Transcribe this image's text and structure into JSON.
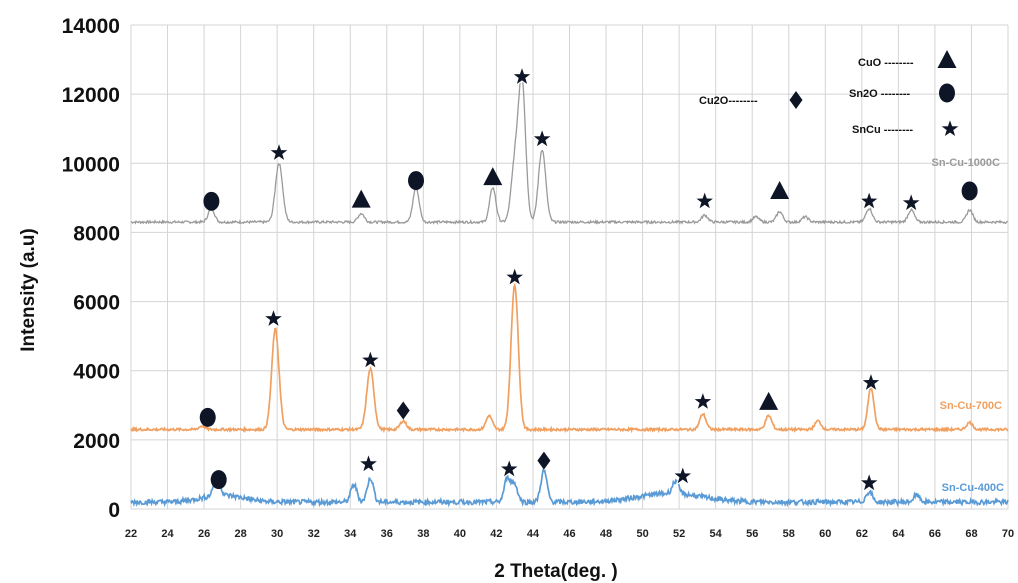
{
  "chart_data": {
    "type": "line",
    "title": "",
    "xlabel": "2 Theta(deg. )",
    "ylabel": "Intensity (a.u)",
    "xlim": [
      22,
      70
    ],
    "ylim": [
      0,
      14000
    ],
    "grid": true,
    "x_ticks": [
      "22",
      "24",
      "26",
      "28",
      "30",
      "32",
      "34",
      "36",
      "38",
      "40",
      "42",
      "44",
      "46",
      "48",
      "50",
      "52",
      "54",
      "56",
      "58",
      "60",
      "62",
      "64",
      "66",
      "68",
      "70"
    ],
    "y_ticks": [
      "0",
      "2000",
      "4000",
      "6000",
      "8000",
      "10000",
      "12000",
      "14000"
    ],
    "colors": {
      "Sn-Cu-1000C": "#9a9a9a",
      "Sn-Cu-700C": "#f0a060",
      "Sn-Cu-400C": "#5b9bd5",
      "marker": "#0d1526"
    },
    "series": [
      {
        "name": "Sn-Cu-1000C",
        "baseline": 8300,
        "peaks": [
          [
            26.4,
            400
          ],
          [
            30.1,
            1700
          ],
          [
            34.6,
            250
          ],
          [
            37.6,
            1000
          ],
          [
            41.8,
            1000
          ],
          [
            43.0,
            1600
          ],
          [
            43.4,
            4050
          ],
          [
            44.5,
            2100
          ],
          [
            53.4,
            200
          ],
          [
            56.2,
            150
          ],
          [
            57.5,
            300
          ],
          [
            58.9,
            150
          ],
          [
            62.4,
            400
          ],
          [
            64.7,
            350
          ],
          [
            67.9,
            350
          ]
        ]
      },
      {
        "name": "Sn-Cu-700C",
        "baseline": 2300,
        "peaks": [
          [
            25.9,
            100
          ],
          [
            29.9,
            2900
          ],
          [
            35.1,
            1750
          ],
          [
            36.9,
            250
          ],
          [
            41.6,
            400
          ],
          [
            43.0,
            4200
          ],
          [
            53.3,
            450
          ],
          [
            56.9,
            400
          ],
          [
            59.6,
            250
          ],
          [
            62.5,
            1200
          ],
          [
            67.9,
            200
          ]
        ]
      },
      {
        "name": "Sn-Cu-400C",
        "baseline": 200,
        "peaks": [
          [
            26.7,
            600
          ],
          [
            34.2,
            500
          ],
          [
            35.1,
            700
          ],
          [
            42.6,
            700
          ],
          [
            43.0,
            500
          ],
          [
            44.6,
            900
          ],
          [
            51.8,
            350
          ],
          [
            62.4,
            300
          ],
          [
            65.0,
            200
          ]
        ]
      }
    ],
    "phase_legend": [
      {
        "label": "CuO --------",
        "marker": "triangle"
      },
      {
        "label": "Sn2O --------",
        "marker": "circle"
      },
      {
        "label": "SnCu --------",
        "marker": "star"
      },
      {
        "label": "Cu2O--------",
        "marker": "diamond"
      }
    ],
    "phase_markers": [
      {
        "marker": "circle",
        "x": 26.4,
        "y": 8900
      },
      {
        "marker": "star",
        "x": 30.1,
        "y": 10300
      },
      {
        "marker": "triangle",
        "x": 34.6,
        "y": 8950
      },
      {
        "marker": "circle",
        "x": 37.6,
        "y": 9500
      },
      {
        "marker": "triangle",
        "x": 41.8,
        "y": 9600
      },
      {
        "marker": "star",
        "x": 43.4,
        "y": 12500
      },
      {
        "marker": "star",
        "x": 44.5,
        "y": 10700
      },
      {
        "marker": "star",
        "x": 53.4,
        "y": 8900
      },
      {
        "marker": "triangle",
        "x": 57.5,
        "y": 9200
      },
      {
        "marker": "star",
        "x": 62.4,
        "y": 8900
      },
      {
        "marker": "star",
        "x": 64.7,
        "y": 8850
      },
      {
        "marker": "circle",
        "x": 67.9,
        "y": 9200
      },
      {
        "marker": "circle",
        "x": 26.2,
        "y": 2650
      },
      {
        "marker": "star",
        "x": 29.8,
        "y": 5500
      },
      {
        "marker": "star",
        "x": 35.1,
        "y": 4300
      },
      {
        "marker": "diamond",
        "x": 36.9,
        "y": 2850
      },
      {
        "marker": "star",
        "x": 43.0,
        "y": 6700
      },
      {
        "marker": "star",
        "x": 53.3,
        "y": 3100
      },
      {
        "marker": "triangle",
        "x": 56.9,
        "y": 3100
      },
      {
        "marker": "star",
        "x": 62.5,
        "y": 3650
      },
      {
        "marker": "circle",
        "x": 26.8,
        "y": 850
      },
      {
        "marker": "star",
        "x": 35.0,
        "y": 1300
      },
      {
        "marker": "star",
        "x": 42.7,
        "y": 1150
      },
      {
        "marker": "diamond",
        "x": 44.6,
        "y": 1400
      },
      {
        "marker": "star",
        "x": 52.2,
        "y": 950
      },
      {
        "marker": "star",
        "x": 62.4,
        "y": 750
      }
    ]
  }
}
